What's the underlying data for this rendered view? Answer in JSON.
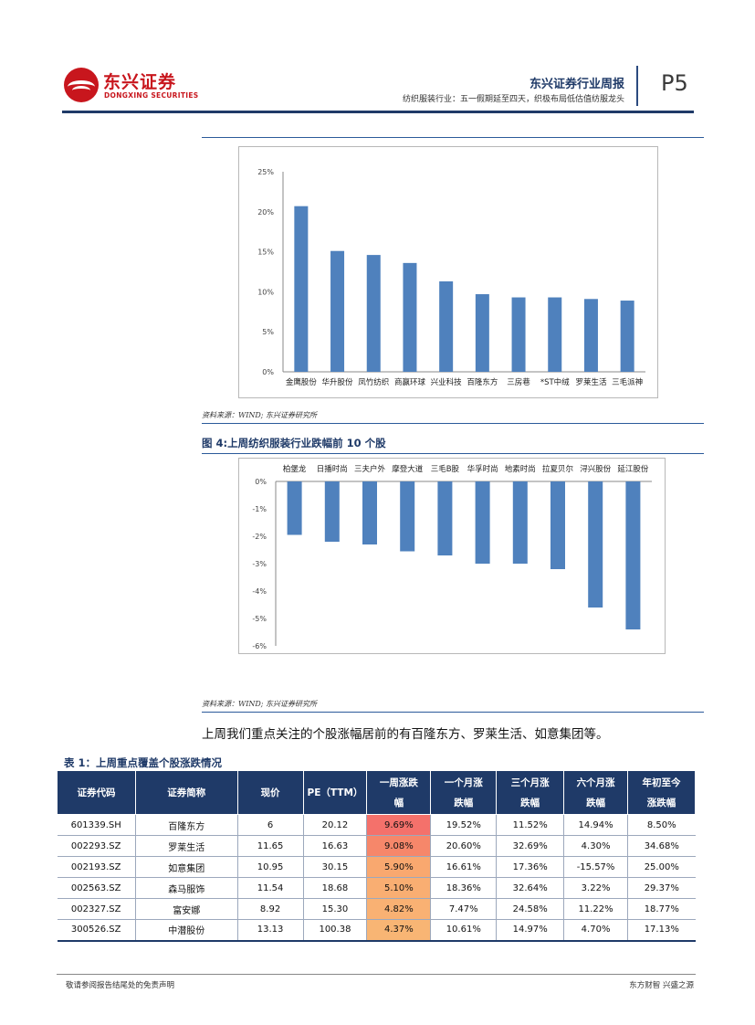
{
  "header": {
    "logo_cn": "东兴证券",
    "logo_en": "DONGXING SECURITIES",
    "title": "东兴证券行业周报",
    "subtitle": "纺织服装行业：五一假期延至四天，织极布局低估值纺服龙头",
    "page": "P5"
  },
  "source1": "资料来源：WIND; 东兴证券研究所",
  "caption2": "图 4:上周纺织服装行业跌幅前 10 个股",
  "source2": "资料来源：WIND; 东兴证券研究所",
  "paragraph": "上周我们重点关注的个股涨幅居前的有百隆东方、罗莱生活、如意集团等。",
  "table": {
    "caption": "表 1：上周重点覆盖个股涨跌情况",
    "headers": [
      [
        "证券代码"
      ],
      [
        "证券简称"
      ],
      [
        "现价"
      ],
      [
        "PE（TTM）"
      ],
      [
        "一周涨跌",
        "幅"
      ],
      [
        "一个月涨",
        "跌幅"
      ],
      [
        "三个月涨",
        "跌幅"
      ],
      [
        "六个月涨",
        "跌幅"
      ],
      [
        "年初至今",
        "涨跌幅"
      ]
    ],
    "rows": [
      [
        "601339.SH",
        "百隆东方",
        "6",
        "20.12",
        "9.69%",
        "19.52%",
        "11.52%",
        "14.94%",
        "8.50%"
      ],
      [
        "002293.SZ",
        "罗莱生活",
        "11.65",
        "16.63",
        "9.08%",
        "20.60%",
        "32.69%",
        "4.30%",
        "34.68%"
      ],
      [
        "002193.SZ",
        "如意集团",
        "10.95",
        "30.15",
        "5.90%",
        "16.61%",
        "17.36%",
        "-15.57%",
        "25.00%"
      ],
      [
        "002563.SZ",
        "森马服饰",
        "11.54",
        "18.68",
        "5.10%",
        "18.36%",
        "32.64%",
        "3.22%",
        "29.37%"
      ],
      [
        "002327.SZ",
        "富安娜",
        "8.92",
        "15.30",
        "4.82%",
        "7.47%",
        "24.58%",
        "11.22%",
        "18.77%"
      ],
      [
        "300526.SZ",
        "中潜股份",
        "13.13",
        "100.38",
        "4.37%",
        "10.61%",
        "14.97%",
        "4.70%",
        "17.13%"
      ]
    ],
    "week_colors": [
      "#f4716b",
      "#f6876a",
      "#f9a86f",
      "#f9ae72",
      "#f9b173",
      "#f8b574"
    ]
  },
  "footer": {
    "left": "敬请参阅报告结尾处的免责声明",
    "right": "东方财智 兴盛之源"
  },
  "colors": {
    "bar": "#4f81bd",
    "navy": "#1f3a68"
  },
  "chart_data": [
    {
      "type": "bar",
      "title": "",
      "categories": [
        "金鹰股份",
        "华升股份",
        "凤竹纺织",
        "商赢环球",
        "兴业科技",
        "百隆东方",
        "三房巷",
        "*ST中绒",
        "罗莱生活",
        "三毛派神"
      ],
      "values": [
        20.7,
        15.1,
        14.6,
        13.6,
        11.3,
        9.7,
        9.3,
        9.3,
        9.1,
        8.9
      ],
      "ylim": [
        0,
        25
      ],
      "yticks": [
        "0%",
        "5%",
        "10%",
        "15%",
        "20%",
        "25%"
      ],
      "xlabel": "",
      "ylabel": "",
      "grid": false
    },
    {
      "type": "bar",
      "title": "图 4:上周纺织服装行业跌幅前 10 个股",
      "categories": [
        "柏堡龙",
        "日播时尚",
        "三夫户外",
        "摩登大道",
        "三毛B股",
        "华孚时尚",
        "地素时尚",
        "拉夏贝尔",
        "浔兴股份",
        "延江股份"
      ],
      "values": [
        -1.95,
        -2.2,
        -2.3,
        -2.55,
        -2.7,
        -3.0,
        -3.0,
        -3.2,
        -4.6,
        -5.4
      ],
      "ylim": [
        -6,
        0
      ],
      "yticks": [
        "0%",
        "-1%",
        "-2%",
        "-3%",
        "-4%",
        "-5%",
        "-6%"
      ],
      "xlabel": "",
      "ylabel": "",
      "grid": false
    }
  ]
}
